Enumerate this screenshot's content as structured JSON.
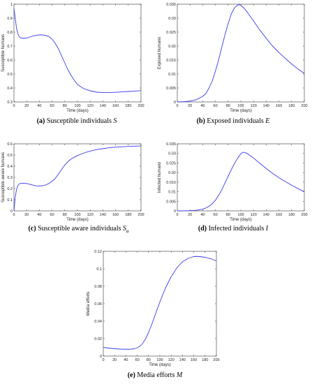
{
  "chart_data": [
    {
      "id": "a",
      "type": "line",
      "caption_letter": "(a)",
      "caption_text": "Susceptible individuals",
      "caption_symbol": "S",
      "caption_sub": "",
      "xlabel": "Time (days)",
      "ylabel": "Susceptible humans",
      "xlim": [
        0,
        200
      ],
      "ylim": [
        0.3,
        1
      ],
      "xticks": [
        0,
        20,
        40,
        60,
        80,
        100,
        120,
        140,
        160,
        180,
        200
      ],
      "yticks": [
        "0.3",
        "0.4",
        "0.5",
        "0.6",
        "0.7",
        "0.8",
        "0.9",
        "1"
      ],
      "line_color": "#3a3af0",
      "x": [
        0,
        2,
        4,
        6,
        8,
        10,
        15,
        20,
        25,
        30,
        35,
        40,
        45,
        50,
        55,
        60,
        65,
        70,
        75,
        80,
        85,
        90,
        95,
        100,
        110,
        120,
        130,
        140,
        150,
        160,
        170,
        180,
        190,
        200
      ],
      "y": [
        0.97,
        0.9,
        0.83,
        0.79,
        0.77,
        0.76,
        0.755,
        0.758,
        0.765,
        0.772,
        0.777,
        0.78,
        0.78,
        0.777,
        0.768,
        0.75,
        0.72,
        0.68,
        0.63,
        0.58,
        0.53,
        0.49,
        0.455,
        0.425,
        0.395,
        0.38,
        0.37,
        0.367,
        0.367,
        0.369,
        0.372,
        0.375,
        0.378,
        0.381
      ]
    },
    {
      "id": "b",
      "type": "line",
      "caption_letter": "(b)",
      "caption_text": "Exposed individuals",
      "caption_symbol": "E",
      "caption_sub": "",
      "xlabel": "Time (days)",
      "ylabel": "Exposed humans",
      "xlim": [
        0,
        200
      ],
      "ylim": [
        0,
        0.035
      ],
      "xticks": [
        0,
        20,
        40,
        60,
        80,
        100,
        120,
        140,
        160,
        180,
        200
      ],
      "yticks": [
        "0",
        "0.005",
        "0.01",
        "0.015",
        "0.02",
        "0.025",
        "0.03",
        "0.035"
      ],
      "line_color": "#3a3af0",
      "x": [
        0,
        10,
        20,
        30,
        40,
        45,
        50,
        55,
        60,
        65,
        70,
        75,
        80,
        85,
        90,
        95,
        98,
        100,
        105,
        110,
        120,
        130,
        140,
        150,
        160,
        170,
        180,
        190,
        200
      ],
      "y": [
        0,
        0.0001,
        0.0003,
        0.0008,
        0.002,
        0.003,
        0.005,
        0.0075,
        0.011,
        0.015,
        0.0195,
        0.024,
        0.028,
        0.0315,
        0.0337,
        0.0347,
        0.0348,
        0.0346,
        0.0336,
        0.0322,
        0.029,
        0.0257,
        0.0228,
        0.02,
        0.0177,
        0.0156,
        0.0136,
        0.0118,
        0.0102
      ]
    },
    {
      "id": "c",
      "type": "line",
      "caption_letter": "(c)",
      "caption_text": "Susceptible aware individuals",
      "caption_symbol": "S",
      "caption_sub": "a",
      "xlabel": "Time (days)",
      "ylabel": "Susceptible aware humans",
      "xlim": [
        0,
        200
      ],
      "ylim": [
        0,
        0.6
      ],
      "xticks": [
        0,
        20,
        40,
        60,
        80,
        100,
        120,
        140,
        160,
        180,
        200
      ],
      "yticks": [
        "0",
        "0.1",
        "0.2",
        "0.3",
        "0.4",
        "0.5",
        "0.6"
      ],
      "line_color": "#3a3af0",
      "x": [
        0,
        2,
        4,
        6,
        8,
        10,
        15,
        20,
        25,
        30,
        35,
        40,
        45,
        50,
        55,
        60,
        65,
        70,
        75,
        80,
        85,
        90,
        95,
        100,
        110,
        120,
        130,
        140,
        150,
        160,
        170,
        180,
        190,
        200
      ],
      "y": [
        0,
        0.12,
        0.19,
        0.225,
        0.24,
        0.245,
        0.248,
        0.245,
        0.238,
        0.23,
        0.224,
        0.222,
        0.225,
        0.232,
        0.245,
        0.265,
        0.29,
        0.33,
        0.37,
        0.41,
        0.44,
        0.465,
        0.48,
        0.495,
        0.518,
        0.535,
        0.548,
        0.557,
        0.565,
        0.57,
        0.574,
        0.577,
        0.579,
        0.581
      ]
    },
    {
      "id": "d",
      "type": "line",
      "caption_letter": "(d)",
      "caption_text": "Infected individuals",
      "caption_symbol": "I",
      "caption_sub": "",
      "xlabel": "Time (days)",
      "ylabel": "Infected humans",
      "xlim": [
        0,
        200
      ],
      "ylim": [
        0,
        0.035
      ],
      "xticks": [
        0,
        20,
        40,
        60,
        80,
        100,
        120,
        140,
        160,
        180,
        200
      ],
      "yticks": [
        "0",
        "0.005",
        "0.01",
        "0.015",
        "0.02",
        "0.025",
        "0.03",
        "0.035"
      ],
      "line_color": "#3a3af0",
      "x": [
        0,
        10,
        20,
        30,
        40,
        45,
        50,
        55,
        60,
        65,
        70,
        75,
        80,
        85,
        90,
        95,
        100,
        103,
        105,
        110,
        120,
        130,
        140,
        150,
        160,
        170,
        180,
        190,
        200
      ],
      "y": [
        0,
        3e-05,
        0.0001,
        0.0003,
        0.0009,
        0.0015,
        0.0024,
        0.0037,
        0.0055,
        0.008,
        0.011,
        0.0145,
        0.018,
        0.0215,
        0.0247,
        0.0275,
        0.0298,
        0.0305,
        0.0306,
        0.03,
        0.0276,
        0.0248,
        0.0221,
        0.0196,
        0.0173,
        0.0153,
        0.0134,
        0.0116,
        0.01
      ]
    },
    {
      "id": "e",
      "type": "line",
      "caption_letter": "(e)",
      "caption_text": "Media efforts",
      "caption_symbol": "M",
      "caption_sub": "",
      "xlabel": "Time (days)",
      "ylabel": "Media efforts",
      "xlim": [
        0,
        200
      ],
      "ylim": [
        0,
        0.12
      ],
      "xticks": [
        0,
        20,
        40,
        60,
        80,
        100,
        120,
        140,
        160,
        180,
        200
      ],
      "yticks": [
        "0",
        "0.02",
        "0.04",
        "0.06",
        "0.08",
        "0.1",
        "0.12"
      ],
      "line_color": "#3a3af0",
      "x": [
        0,
        10,
        20,
        30,
        40,
        45,
        50,
        55,
        60,
        65,
        70,
        75,
        80,
        85,
        90,
        95,
        100,
        110,
        120,
        130,
        140,
        150,
        160,
        165,
        170,
        180,
        190,
        200
      ],
      "y": [
        0.01,
        0.009,
        0.0085,
        0.008,
        0.0078,
        0.0078,
        0.008,
        0.0085,
        0.0095,
        0.0115,
        0.015,
        0.02,
        0.027,
        0.035,
        0.044,
        0.053,
        0.062,
        0.078,
        0.091,
        0.101,
        0.108,
        0.112,
        0.114,
        0.1142,
        0.114,
        0.1132,
        0.1115,
        0.109
      ]
    }
  ]
}
